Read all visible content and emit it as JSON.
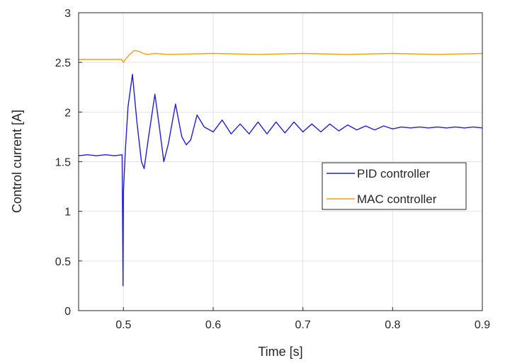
{
  "chart_data": {
    "type": "line",
    "title": "",
    "xlabel": "Time [s]",
    "ylabel": "Control current [A]",
    "xlim": [
      0.45,
      0.9
    ],
    "ylim": [
      0,
      3
    ],
    "xticks": [
      0.5,
      0.6,
      0.7,
      0.8,
      0.9
    ],
    "yticks": [
      0,
      0.5,
      1,
      1.5,
      2,
      2.5,
      3
    ],
    "xtick_labels": [
      "0.5",
      "0.6",
      "0.7",
      "0.8",
      "0.9"
    ],
    "ytick_labels": [
      "0",
      "0.5",
      "1",
      "1.5",
      "2",
      "2.5",
      "3"
    ],
    "grid": true,
    "legend_position": "center-right",
    "series": [
      {
        "name": "PID controller",
        "color": "#1f1fd4",
        "x": [
          0.45,
          0.46,
          0.47,
          0.48,
          0.49,
          0.4985,
          0.4995,
          0.5,
          0.502,
          0.505,
          0.51,
          0.515,
          0.52,
          0.523,
          0.528,
          0.535,
          0.54,
          0.545,
          0.55,
          0.558,
          0.565,
          0.57,
          0.575,
          0.582,
          0.59,
          0.6,
          0.61,
          0.62,
          0.63,
          0.64,
          0.65,
          0.66,
          0.67,
          0.68,
          0.69,
          0.7,
          0.71,
          0.72,
          0.73,
          0.74,
          0.75,
          0.76,
          0.77,
          0.78,
          0.79,
          0.8,
          0.81,
          0.82,
          0.83,
          0.84,
          0.85,
          0.86,
          0.87,
          0.88,
          0.89,
          0.9
        ],
        "y": [
          1.56,
          1.57,
          1.56,
          1.57,
          1.56,
          1.57,
          0.25,
          1.2,
          1.6,
          2.05,
          2.38,
          1.9,
          1.5,
          1.43,
          1.75,
          2.18,
          1.85,
          1.5,
          1.68,
          2.08,
          1.75,
          1.67,
          1.72,
          1.97,
          1.85,
          1.8,
          1.92,
          1.78,
          1.88,
          1.78,
          1.9,
          1.78,
          1.9,
          1.79,
          1.9,
          1.8,
          1.88,
          1.8,
          1.88,
          1.81,
          1.87,
          1.82,
          1.86,
          1.82,
          1.86,
          1.83,
          1.85,
          1.84,
          1.85,
          1.84,
          1.85,
          1.84,
          1.85,
          1.84,
          1.85,
          1.84
        ]
      },
      {
        "name": "MAC controller",
        "color": "#e8a317",
        "x": [
          0.45,
          0.47,
          0.49,
          0.498,
          0.5,
          0.503,
          0.507,
          0.512,
          0.518,
          0.522,
          0.527,
          0.535,
          0.55,
          0.6,
          0.65,
          0.7,
          0.75,
          0.8,
          0.85,
          0.9
        ],
        "y": [
          2.53,
          2.53,
          2.53,
          2.53,
          2.5,
          2.54,
          2.58,
          2.62,
          2.61,
          2.59,
          2.58,
          2.59,
          2.58,
          2.59,
          2.58,
          2.59,
          2.58,
          2.59,
          2.58,
          2.59
        ]
      }
    ]
  }
}
